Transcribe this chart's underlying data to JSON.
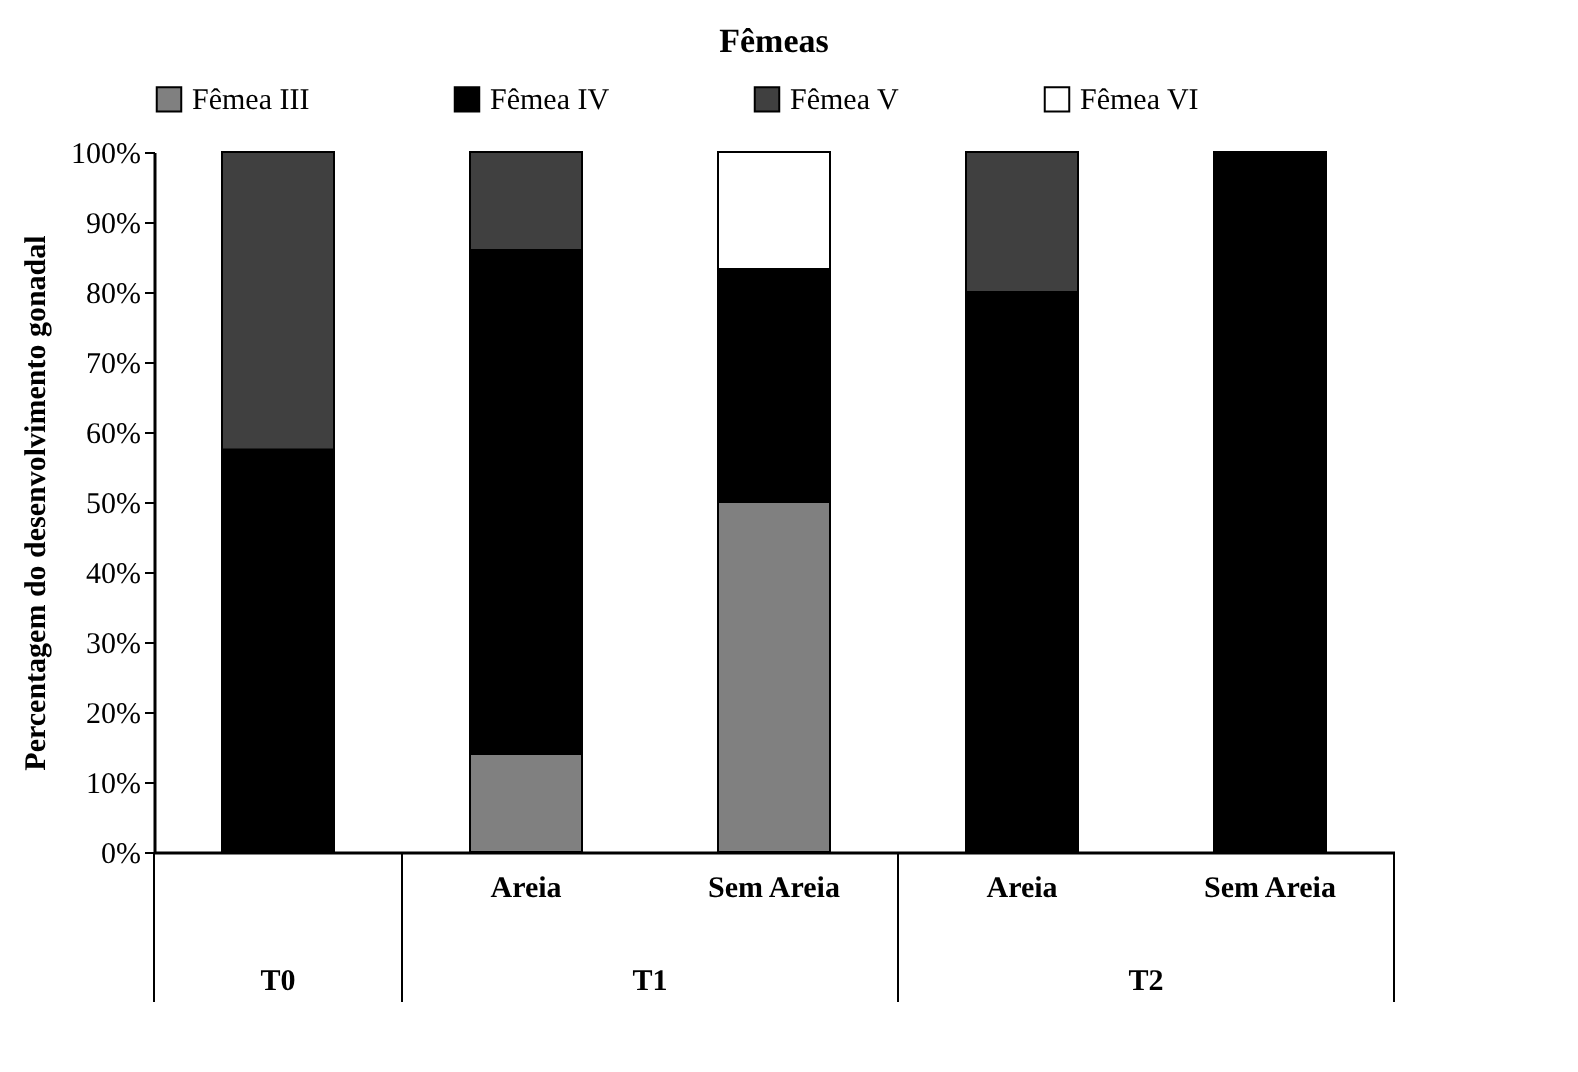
{
  "chart_data": {
    "type": "bar",
    "title": "Fêmeas",
    "ylabel": "Percentagem do desenvolvimento gonadal",
    "stacked": true,
    "categories": [
      null,
      "Areia",
      "Sem Areia",
      "Areia",
      "Sem Areia"
    ],
    "annotations": [
      "T0",
      "T1",
      "T2"
    ],
    "series": [
      {
        "name": "Fêmea III",
        "color": "#808080",
        "values": [
          null,
          14,
          50,
          null,
          null
        ]
      },
      {
        "name": "Fêmea IV",
        "color": "#000000",
        "values": [
          57.5,
          72,
          33.3,
          80,
          100
        ]
      },
      {
        "name": "Fêmea V",
        "color": "#404040",
        "values": [
          42.5,
          14,
          null,
          20,
          null
        ]
      },
      {
        "name": "Fêmea VI",
        "color": "#ffffff",
        "values": [
          null,
          null,
          16.7,
          null,
          null
        ]
      }
    ],
    "ylim": [
      0,
      100
    ],
    "yticks": [
      {
        "value": 0,
        "label": "0%"
      },
      {
        "value": 10,
        "label": "10%"
      },
      {
        "value": 20,
        "label": "20%"
      },
      {
        "value": 30,
        "label": "30%"
      },
      {
        "value": 40,
        "label": "40%"
      },
      {
        "value": 50,
        "label": "50%"
      },
      {
        "value": 60,
        "label": "60%"
      },
      {
        "value": 70,
        "label": "70%"
      },
      {
        "value": 80,
        "label": "80%"
      },
      {
        "value": 90,
        "label": "90%"
      },
      {
        "value": 100,
        "label": "100%"
      }
    ],
    "grid": false,
    "legend": "top"
  }
}
